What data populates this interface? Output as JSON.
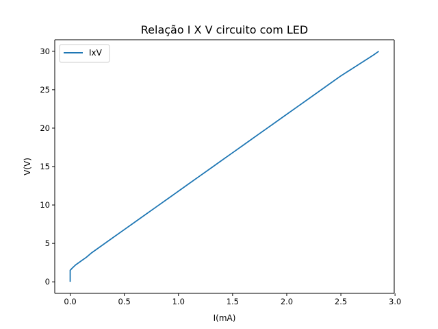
{
  "chart_data": {
    "type": "line",
    "title": "Relação I X V circuito com LED",
    "xlabel": "I(mA)",
    "ylabel": "V(V)",
    "xlim": [
      -0.1425,
      2.9925
    ],
    "ylim": [
      -1.5,
      31.5
    ],
    "xticks": [
      0.0,
      0.5,
      1.0,
      1.5,
      2.0,
      2.5,
      3.0
    ],
    "xtick_labels": [
      "0.0",
      "0.5",
      "1.0",
      "1.5",
      "2.0",
      "2.5",
      "3.0"
    ],
    "yticks": [
      0,
      5,
      10,
      15,
      20,
      25,
      30
    ],
    "ytick_labels": [
      "0",
      "5",
      "10",
      "15",
      "20",
      "25",
      "30"
    ],
    "grid": false,
    "legend_position": "upper-left",
    "series": [
      {
        "name": "IxV",
        "color": "#1f77b4",
        "x": [
          0.0,
          0.0,
          0.0,
          0.02,
          0.05,
          0.1,
          0.15,
          0.2,
          0.3,
          0.4,
          0.5,
          0.6,
          0.7,
          0.8,
          0.9,
          1.0,
          1.1,
          1.2,
          1.3,
          1.4,
          1.5,
          1.6,
          1.7,
          1.8,
          1.9,
          2.0,
          2.1,
          2.2,
          2.3,
          2.4,
          2.5,
          2.6,
          2.7,
          2.8,
          2.85
        ],
        "y": [
          0.0,
          1.0,
          1.5,
          1.8,
          2.2,
          2.7,
          3.2,
          3.8,
          4.8,
          5.8,
          6.8,
          7.8,
          8.8,
          9.8,
          10.8,
          11.8,
          12.8,
          13.8,
          14.8,
          15.8,
          16.8,
          17.8,
          18.8,
          19.8,
          20.8,
          21.8,
          22.8,
          23.8,
          24.8,
          25.8,
          26.8,
          27.7,
          28.6,
          29.5,
          30.0
        ]
      }
    ]
  }
}
